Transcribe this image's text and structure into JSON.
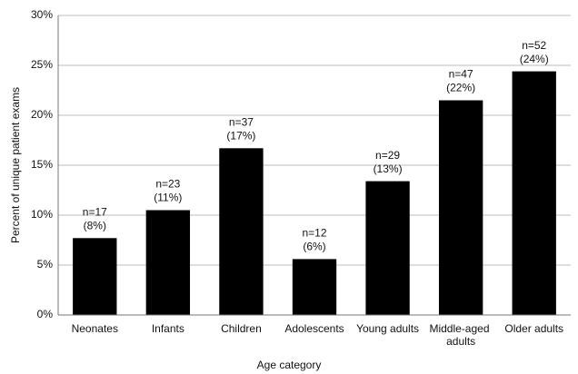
{
  "chart_data": {
    "type": "bar",
    "x_label": "Age category",
    "y_label": "Percent of unique patient exams",
    "categories": [
      "Neonates",
      "Infants",
      "Children",
      "Adolescents",
      "Young adults",
      "Middle-aged adults",
      "Older adults"
    ],
    "values": [
      7.7,
      10.5,
      16.7,
      5.6,
      13.4,
      21.5,
      24.4
    ],
    "value_labels": [
      "(8%)",
      "(11%)",
      "(17%)",
      "(6%)",
      "(13%)",
      "(22%)",
      "(24%)"
    ],
    "count_labels": [
      "n=17",
      "n=23",
      "n=37",
      "n=12",
      "n=29",
      "n=47",
      "n=52"
    ],
    "color": "#000000",
    "ylim": [
      0,
      30
    ],
    "yticks": [
      {
        "value": 0,
        "label": "0%"
      },
      {
        "value": 5,
        "label": "5%"
      },
      {
        "value": 10,
        "label": "10%"
      },
      {
        "value": 15,
        "label": "15%"
      },
      {
        "value": 20,
        "label": "20%"
      },
      {
        "value": 25,
        "label": "25%"
      },
      {
        "value": 30,
        "label": "30%"
      }
    ],
    "grid": true
  }
}
